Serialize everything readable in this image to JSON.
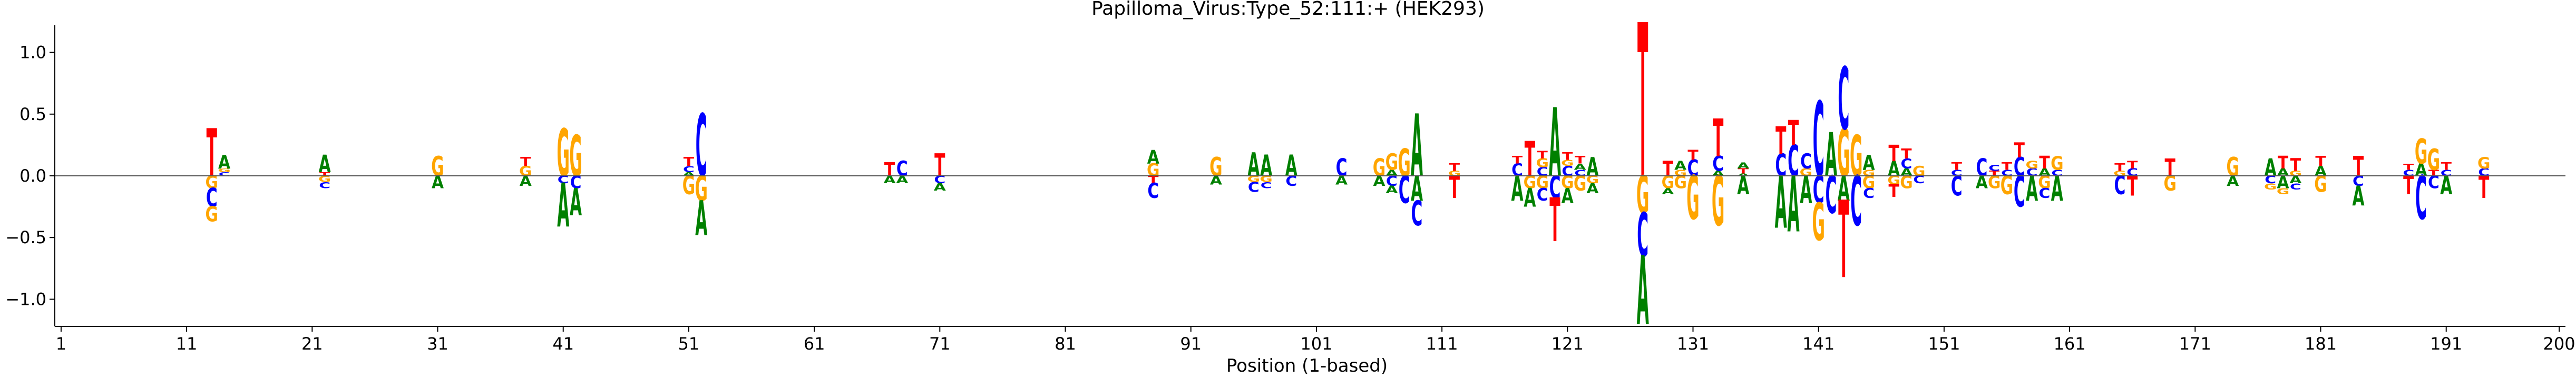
{
  "chart_data": {
    "type": "sequence-logo",
    "title": "Papilloma_Virus:Type_52:111:+  (HEK293)",
    "xlabel": "Position (1-based)",
    "ylabel": "",
    "xlim": [
      1,
      200
    ],
    "ylim": [
      -1.22,
      1.22
    ],
    "x_ticks": [
      1,
      11,
      21,
      31,
      41,
      51,
      61,
      71,
      81,
      91,
      101,
      111,
      121,
      131,
      141,
      151,
      161,
      171,
      181,
      191,
      200
    ],
    "y_ticks": [
      -1.0,
      -0.5,
      0.0,
      0.5,
      1.0
    ],
    "y_tick_labels": [
      "−1.0",
      "−0.5",
      "0.0",
      "0.5",
      "1.0"
    ],
    "zero_line": true,
    "colors": {
      "A": "#008000",
      "C": "#0000ff",
      "G": "#ffa500",
      "T": "#ff0000"
    },
    "positions": [
      {
        "pos": 13,
        "up": [
          [
            "T",
            0.38
          ]
        ],
        "down": [
          [
            "G",
            -0.1
          ],
          [
            "C",
            -0.15
          ],
          [
            "G",
            -0.12
          ]
        ]
      },
      {
        "pos": 14,
        "up": [
          [
            "C",
            0.03
          ],
          [
            "G",
            0.03
          ],
          [
            "A",
            0.11
          ]
        ],
        "down": []
      },
      {
        "pos": 22,
        "up": [
          [
            "T",
            0.03
          ],
          [
            "A",
            0.14
          ]
        ],
        "down": [
          [
            "G",
            -0.05
          ],
          [
            "C",
            -0.05
          ]
        ]
      },
      {
        "pos": 31,
        "up": [
          [
            "G",
            0.16
          ]
        ],
        "down": [
          [
            "A",
            -0.1
          ]
        ]
      },
      {
        "pos": 38,
        "up": [
          [
            "G",
            0.08
          ],
          [
            "T",
            0.07
          ]
        ],
        "down": [
          [
            "A",
            -0.08
          ]
        ]
      },
      {
        "pos": 41,
        "up": [
          [
            "G",
            0.38
          ]
        ],
        "down": [
          [
            "C",
            -0.06
          ],
          [
            "A",
            -0.35
          ]
        ]
      },
      {
        "pos": 42,
        "up": [
          [
            "G",
            0.33
          ]
        ],
        "down": [
          [
            "C",
            -0.1
          ],
          [
            "A",
            -0.22
          ]
        ]
      },
      {
        "pos": 51,
        "up": [
          [
            "A",
            0.03
          ],
          [
            "C",
            0.05
          ],
          [
            "T",
            0.07
          ]
        ],
        "down": [
          [
            "G",
            -0.15
          ]
        ]
      },
      {
        "pos": 52,
        "up": [
          [
            "C",
            0.5
          ]
        ],
        "down": [
          [
            "G",
            -0.2
          ],
          [
            "A",
            -0.28
          ]
        ]
      },
      {
        "pos": 67,
        "up": [
          [
            "T",
            0.11
          ]
        ],
        "down": [
          [
            "A",
            -0.06
          ]
        ]
      },
      {
        "pos": 68,
        "up": [
          [
            "C",
            0.12
          ]
        ],
        "down": [
          [
            "A",
            -0.06
          ]
        ]
      },
      {
        "pos": 71,
        "up": [
          [
            "T",
            0.18
          ]
        ],
        "down": [
          [
            "C",
            -0.06
          ],
          [
            "A",
            -0.06
          ]
        ]
      },
      {
        "pos": 88,
        "up": [
          [
            "G",
            0.1
          ],
          [
            "A",
            0.11
          ]
        ],
        "down": [
          [
            "T",
            -0.06
          ],
          [
            "C",
            -0.12
          ]
        ]
      },
      {
        "pos": 93,
        "up": [
          [
            "G",
            0.15
          ]
        ],
        "down": [
          [
            "A",
            -0.07
          ]
        ]
      },
      {
        "pos": 96,
        "up": [
          [
            "A",
            0.19
          ]
        ],
        "down": [
          [
            "G",
            -0.05
          ],
          [
            "C",
            -0.08
          ]
        ]
      },
      {
        "pos": 97,
        "up": [
          [
            "A",
            0.17
          ]
        ],
        "down": [
          [
            "G",
            -0.05
          ],
          [
            "C",
            -0.05
          ]
        ]
      },
      {
        "pos": 99,
        "up": [
          [
            "A",
            0.17
          ]
        ],
        "down": [
          [
            "C",
            -0.08
          ]
        ]
      },
      {
        "pos": 103,
        "up": [
          [
            "C",
            0.14
          ]
        ],
        "down": [
          [
            "A",
            -0.07
          ]
        ]
      },
      {
        "pos": 106,
        "up": [
          [
            "G",
            0.14
          ]
        ],
        "down": [
          [
            "A",
            -0.08
          ]
        ]
      },
      {
        "pos": 107,
        "up": [
          [
            "A",
            0.05
          ],
          [
            "G",
            0.13
          ]
        ],
        "down": [
          [
            "C",
            -0.08
          ],
          [
            "A",
            -0.06
          ]
        ]
      },
      {
        "pos": 108,
        "up": [
          [
            "G",
            0.22
          ]
        ],
        "down": [
          [
            "C",
            -0.22
          ]
        ]
      },
      {
        "pos": 109,
        "up": [
          [
            "A",
            0.5
          ]
        ],
        "down": [
          [
            "A",
            -0.2
          ],
          [
            "C",
            -0.2
          ]
        ]
      },
      {
        "pos": 112,
        "up": [
          [
            "G",
            0.04
          ],
          [
            "T",
            0.06
          ]
        ],
        "down": [
          [
            "T",
            -0.18
          ]
        ]
      },
      {
        "pos": 117,
        "up": [
          [
            "C",
            0.1
          ],
          [
            "T",
            0.06
          ]
        ],
        "down": [
          [
            "A",
            -0.2
          ]
        ]
      },
      {
        "pos": 118,
        "up": [
          [
            "T",
            0.28
          ]
        ],
        "down": [
          [
            "G",
            -0.1
          ],
          [
            "A",
            -0.15
          ]
        ]
      },
      {
        "pos": 119,
        "up": [
          [
            "C",
            0.07
          ],
          [
            "G",
            0.07
          ],
          [
            "T",
            0.06
          ]
        ],
        "down": [
          [
            "G",
            -0.1
          ],
          [
            "C",
            -0.1
          ]
        ]
      },
      {
        "pos": 120,
        "up": [
          [
            "A",
            0.55
          ]
        ],
        "down": [
          [
            "C",
            -0.18
          ],
          [
            "T",
            -0.35
          ]
        ]
      },
      {
        "pos": 121,
        "up": [
          [
            "C",
            0.08
          ],
          [
            "G",
            0.05
          ],
          [
            "T",
            0.06
          ]
        ],
        "down": [
          [
            "G",
            -0.1
          ],
          [
            "A",
            -0.12
          ]
        ]
      },
      {
        "pos": 122,
        "up": [
          [
            "C",
            0.05
          ],
          [
            "A",
            0.05
          ],
          [
            "T",
            0.06
          ]
        ],
        "down": [
          [
            "G",
            -0.12
          ]
        ]
      },
      {
        "pos": 123,
        "up": [
          [
            "A",
            0.15
          ]
        ],
        "down": [
          [
            "G",
            -0.06
          ],
          [
            "A",
            -0.08
          ]
        ]
      },
      {
        "pos": 127,
        "up": [
          [
            "T",
            1.23
          ]
        ],
        "down": [
          [
            "G",
            -0.3
          ],
          [
            "C",
            -0.35
          ],
          [
            "A",
            -0.55
          ]
        ]
      },
      {
        "pos": 129,
        "up": [
          [
            "T",
            0.12
          ]
        ],
        "down": [
          [
            "G",
            -0.1
          ],
          [
            "A",
            -0.05
          ]
        ]
      },
      {
        "pos": 130,
        "up": [
          [
            "G",
            0.05
          ],
          [
            "A",
            0.07
          ]
        ],
        "down": [
          [
            "G",
            -0.1
          ]
        ]
      },
      {
        "pos": 131,
        "up": [
          [
            "C",
            0.13
          ],
          [
            "T",
            0.08
          ]
        ],
        "down": [
          [
            "G",
            -0.35
          ]
        ]
      },
      {
        "pos": 133,
        "up": [
          [
            "A",
            0.04
          ],
          [
            "C",
            0.12
          ],
          [
            "T",
            0.3
          ]
        ],
        "down": [
          [
            "G",
            -0.4
          ]
        ]
      },
      {
        "pos": 135,
        "up": [
          [
            "A",
            0.02
          ],
          [
            "T",
            0.04
          ],
          [
            "A",
            0.05
          ]
        ],
        "down": [
          [
            "A",
            -0.15
          ]
        ]
      },
      {
        "pos": 138,
        "up": [
          [
            "C",
            0.18
          ],
          [
            "T",
            0.22
          ]
        ],
        "down": [
          [
            "A",
            -0.42
          ]
        ]
      },
      {
        "pos": 139,
        "up": [
          [
            "C",
            0.25
          ],
          [
            "T",
            0.2
          ]
        ],
        "down": [
          [
            "A",
            -0.45
          ]
        ]
      },
      {
        "pos": 140,
        "up": [
          [
            "G",
            0.06
          ],
          [
            "C",
            0.12
          ]
        ],
        "down": [
          [
            "A",
            -0.22
          ]
        ]
      },
      {
        "pos": 141,
        "up": [
          [
            "C",
            0.6
          ]
        ],
        "down": [
          [
            "C",
            -0.22
          ],
          [
            "G",
            -0.3
          ]
        ]
      },
      {
        "pos": 142,
        "up": [
          [
            "A",
            0.35
          ]
        ],
        "down": [
          [
            "C",
            -0.3
          ]
        ]
      },
      {
        "pos": 143,
        "up": [
          [
            "G",
            0.38
          ],
          [
            "C",
            0.5
          ]
        ],
        "down": [
          [
            "A",
            -0.2
          ],
          [
            "T",
            -0.62
          ]
        ]
      },
      {
        "pos": 144,
        "up": [
          [
            "G",
            0.33
          ]
        ],
        "down": [
          [
            "C",
            -0.4
          ]
        ]
      },
      {
        "pos": 145,
        "up": [
          [
            "G",
            0.05
          ],
          [
            "A",
            0.12
          ]
        ],
        "down": [
          [
            "G",
            -0.1
          ],
          [
            "C",
            -0.08
          ]
        ]
      },
      {
        "pos": 147,
        "up": [
          [
            "A",
            0.12
          ],
          [
            "T",
            0.13
          ]
        ],
        "down": [
          [
            "G",
            -0.07
          ],
          [
            "T",
            -0.1
          ]
        ]
      },
      {
        "pos": 148,
        "up": [
          [
            "A",
            0.06
          ],
          [
            "C",
            0.08
          ],
          [
            "T",
            0.08
          ]
        ],
        "down": [
          [
            "G",
            -0.1
          ]
        ]
      },
      {
        "pos": 149,
        "up": [
          [
            "G",
            0.08
          ]
        ],
        "down": [
          [
            "C",
            -0.06
          ]
        ]
      },
      {
        "pos": 152,
        "up": [
          [
            "C",
            0.05
          ],
          [
            "T",
            0.06
          ]
        ],
        "down": [
          [
            "C",
            -0.16
          ]
        ]
      },
      {
        "pos": 154,
        "up": [
          [
            "C",
            0.14
          ]
        ],
        "down": [
          [
            "A",
            -0.1
          ]
        ]
      },
      {
        "pos": 155,
        "up": [
          [
            "T",
            0.04
          ],
          [
            "C",
            0.05
          ]
        ],
        "down": [
          [
            "G",
            -0.1
          ]
        ]
      },
      {
        "pos": 156,
        "up": [
          [
            "C",
            0.05
          ],
          [
            "T",
            0.06
          ]
        ],
        "down": [
          [
            "G",
            -0.15
          ]
        ]
      },
      {
        "pos": 157,
        "up": [
          [
            "C",
            0.15
          ],
          [
            "T",
            0.12
          ]
        ],
        "down": [
          [
            "C",
            -0.25
          ]
        ]
      },
      {
        "pos": 158,
        "up": [
          [
            "C",
            0.06
          ],
          [
            "G",
            0.06
          ]
        ],
        "down": [
          [
            "A",
            -0.2
          ]
        ]
      },
      {
        "pos": 159,
        "up": [
          [
            "A",
            0.06
          ],
          [
            "T",
            0.1
          ]
        ],
        "down": [
          [
            "G",
            -0.1
          ],
          [
            "C",
            -0.08
          ]
        ]
      },
      {
        "pos": 160,
        "up": [
          [
            "C",
            0.05
          ],
          [
            "G",
            0.11
          ]
        ],
        "down": [
          [
            "A",
            -0.2
          ]
        ]
      },
      {
        "pos": 165,
        "up": [
          [
            "G",
            0.04
          ],
          [
            "T",
            0.06
          ]
        ],
        "down": [
          [
            "C",
            -0.15
          ]
        ]
      },
      {
        "pos": 166,
        "up": [
          [
            "C",
            0.06
          ],
          [
            "T",
            0.06
          ]
        ],
        "down": [
          [
            "T",
            -0.16
          ]
        ]
      },
      {
        "pos": 169,
        "up": [
          [
            "T",
            0.14
          ]
        ],
        "down": [
          [
            "G",
            -0.12
          ]
        ]
      },
      {
        "pos": 174,
        "up": [
          [
            "G",
            0.15
          ]
        ],
        "down": [
          [
            "A",
            -0.08
          ]
        ]
      },
      {
        "pos": 177,
        "up": [
          [
            "A",
            0.14
          ]
        ],
        "down": [
          [
            "C",
            -0.06
          ],
          [
            "G",
            -0.05
          ]
        ]
      },
      {
        "pos": 178,
        "up": [
          [
            "A",
            0.06
          ],
          [
            "T",
            0.1
          ]
        ],
        "down": [
          [
            "A",
            -0.1
          ],
          [
            "G",
            -0.05
          ]
        ]
      },
      {
        "pos": 179,
        "up": [
          [
            "G",
            0.04
          ],
          [
            "T",
            0.1
          ]
        ],
        "down": [
          [
            "A",
            -0.06
          ],
          [
            "C",
            -0.05
          ]
        ]
      },
      {
        "pos": 181,
        "up": [
          [
            "A",
            0.08
          ],
          [
            "T",
            0.08
          ]
        ],
        "down": [
          [
            "G",
            -0.13
          ]
        ]
      },
      {
        "pos": 184,
        "up": [
          [
            "T",
            0.16
          ]
        ],
        "down": [
          [
            "C",
            -0.08
          ],
          [
            "A",
            -0.16
          ]
        ]
      },
      {
        "pos": 188,
        "up": [
          [
            "C",
            0.05
          ],
          [
            "T",
            0.05
          ]
        ],
        "down": [
          [
            "T",
            -0.15
          ]
        ]
      },
      {
        "pos": 189,
        "up": [
          [
            "A",
            0.1
          ],
          [
            "G",
            0.2
          ]
        ],
        "down": [
          [
            "C",
            -0.35
          ]
        ]
      },
      {
        "pos": 190,
        "up": [
          [
            "T",
            0.05
          ],
          [
            "G",
            0.17
          ]
        ],
        "down": [
          [
            "C",
            -0.1
          ]
        ]
      },
      {
        "pos": 191,
        "up": [
          [
            "C",
            0.05
          ],
          [
            "T",
            0.06
          ]
        ],
        "down": [
          [
            "A",
            -0.15
          ]
        ]
      },
      {
        "pos": 194,
        "up": [
          [
            "C",
            0.06
          ],
          [
            "G",
            0.09
          ]
        ],
        "down": [
          [
            "T",
            -0.18
          ]
        ]
      }
    ]
  }
}
